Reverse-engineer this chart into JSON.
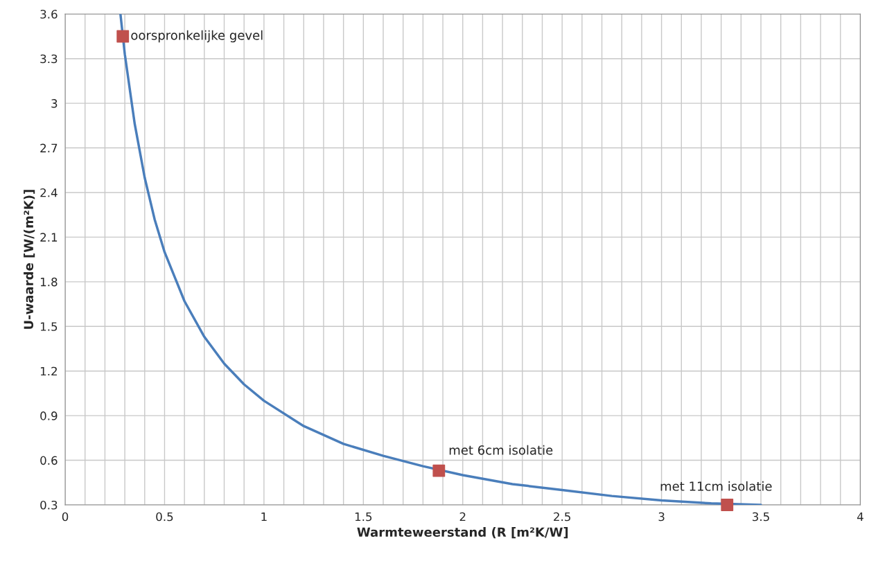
{
  "chart_data": {
    "type": "line",
    "xlabel": "Warmteweerstand (R [m²K/W]",
    "ylabel": "U-waarde [W/(m²K)]",
    "xlim": [
      0,
      4
    ],
    "ylim": [
      0.3,
      3.6
    ],
    "xticks": [
      0,
      {
        "value": 0.1,
        "label": null
      },
      {
        "value": 0.2,
        "label": null
      },
      {
        "value": 0.3,
        "label": null
      },
      {
        "value": 0.4,
        "label": null
      },
      0.5,
      {
        "value": 0.6,
        "label": null
      },
      {
        "value": 0.7,
        "label": null
      },
      {
        "value": 0.8,
        "label": null
      },
      {
        "value": 0.9,
        "label": null
      },
      1,
      {
        "value": 1.1,
        "label": null
      },
      {
        "value": 1.2,
        "label": null
      },
      {
        "value": 1.3,
        "label": null
      },
      {
        "value": 1.4,
        "label": null
      },
      1.5,
      {
        "value": 1.6,
        "label": null
      },
      {
        "value": 1.7,
        "label": null
      },
      {
        "value": 1.8,
        "label": null
      },
      {
        "value": 1.9,
        "label": null
      },
      2,
      {
        "value": 2.1,
        "label": null
      },
      {
        "value": 2.2,
        "label": null
      },
      {
        "value": 2.3,
        "label": null
      },
      {
        "value": 2.4,
        "label": null
      },
      2.5,
      {
        "value": 2.6,
        "label": null
      },
      {
        "value": 2.7,
        "label": null
      },
      {
        "value": 2.8,
        "label": null
      },
      {
        "value": 2.9,
        "label": null
      },
      3,
      {
        "value": 3.1,
        "label": null
      },
      {
        "value": 3.2,
        "label": null
      },
      {
        "value": 3.3,
        "label": null
      },
      {
        "value": 3.4,
        "label": null
      },
      3.5,
      {
        "value": 3.6,
        "label": null
      },
      {
        "value": 3.7,
        "label": null
      },
      {
        "value": 3.8,
        "label": null
      },
      {
        "value": 3.9,
        "label": null
      },
      4
    ],
    "yticks": [
      0.3,
      0.6,
      0.9,
      1.2,
      1.5,
      1.8,
      2.1,
      2.4,
      2.7,
      3,
      3.3,
      3.6
    ],
    "grid": true,
    "legend": false,
    "series": [
      {
        "color": "#4a7ebb",
        "marker": "none",
        "line_style": "solid",
        "x": [
          0.278,
          0.3,
          0.35,
          0.4,
          0.45,
          0.5,
          0.6,
          0.7,
          0.8,
          0.9,
          1.0,
          1.2,
          1.4,
          1.6,
          1.8,
          2.0,
          2.25,
          2.5,
          2.75,
          3.0,
          3.25,
          3.5
        ],
        "values": [
          3.6,
          3.33,
          2.86,
          2.5,
          2.22,
          2.0,
          1.67,
          1.43,
          1.25,
          1.11,
          1.0,
          0.83,
          0.71,
          0.63,
          0.56,
          0.5,
          0.44,
          0.4,
          0.36,
          0.33,
          0.31,
          0.3
        ]
      },
      {
        "type": "scatter",
        "color": "#c0504d",
        "marker": "square",
        "x": [
          0.29,
          1.88,
          3.33
        ],
        "values": [
          3.45,
          0.53,
          0.3
        ]
      }
    ],
    "annotations": [
      {
        "text": "oorspronkelijke gevel",
        "x": 0.29,
        "y": 3.45
      },
      {
        "text": "met 6cm isolatie",
        "x": 1.88,
        "y": 0.53
      },
      {
        "text": "met 11cm isolatie",
        "x": 3.33,
        "y": 0.3
      }
    ]
  }
}
